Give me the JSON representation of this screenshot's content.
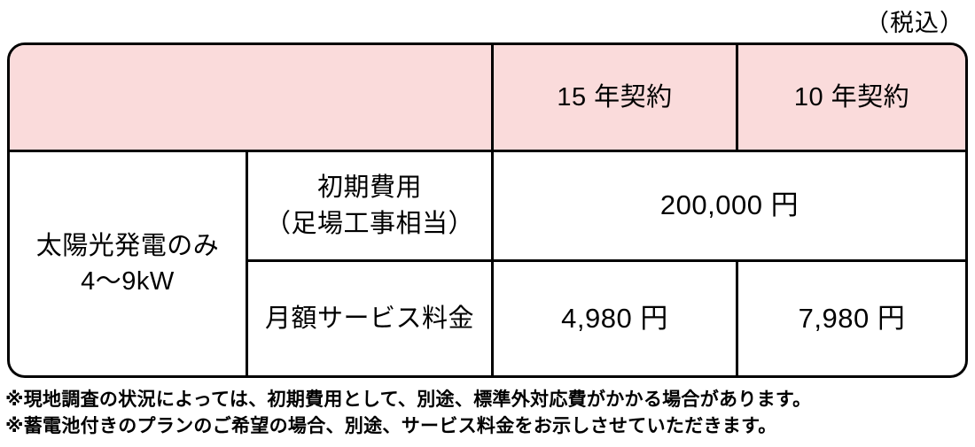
{
  "page": {
    "tax_note": "（税込）"
  },
  "table": {
    "colors": {
      "header_bg": "#fadbdb",
      "border": "#000000"
    },
    "header": {
      "col_15y": "15 年契約",
      "col_10y": "10 年契約"
    },
    "row_group": {
      "line1": "太陽光発電のみ",
      "line2": "4～9kW"
    },
    "rows": {
      "initial_cost": {
        "label_line1": "初期費用",
        "label_line2": "（足場工事相当）",
        "value": "200,000 円"
      },
      "monthly_fee": {
        "label": "月額サービス料金",
        "value_15y": "4,980 円",
        "value_10y": "7,980 円"
      }
    }
  },
  "notes": [
    "※現地調査の状況によっては、初期費用として、別途、標準外対応費がかかる場合があります。",
    "※蓄電池付きのプランのご希望の場合、別途、サービス料金をお示しさせていただきます。"
  ]
}
